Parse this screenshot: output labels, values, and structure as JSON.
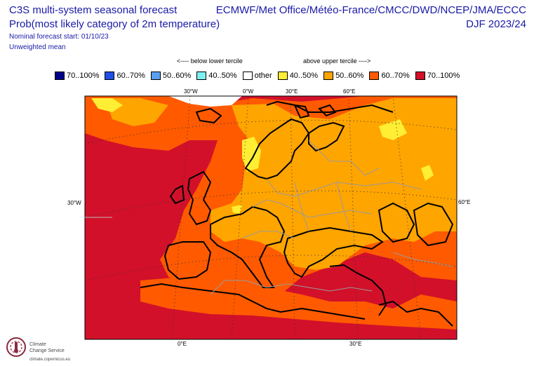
{
  "header": {
    "title_line1": "C3S multi-system seasonal forecast",
    "title_line2": "Prob(most likely category of 2m temperature)",
    "providers": "ECMWF/Met Office/Météo-France/CMCC/DWD/NCEP/JMA/ECCC",
    "season": "DJF 2023/24",
    "forecast_start": "Nominal forecast start: 01/10/23",
    "weighting": "Unweighted mean"
  },
  "legend": {
    "below_label": "<---- below lower tercile",
    "above_label": "above upper tercile ---->",
    "items": [
      {
        "label": "70..100%",
        "color": "#000088"
      },
      {
        "label": "60..70%",
        "color": "#1f4fe6"
      },
      {
        "label": "50..60%",
        "color": "#5aa0f0"
      },
      {
        "label": "40..50%",
        "color": "#7ff0f0"
      },
      {
        "label": "other",
        "color": "#ffffff"
      },
      {
        "label": "40..50%",
        "color": "#ffee33"
      },
      {
        "label": "50..60%",
        "color": "#ffa500"
      },
      {
        "label": "60..70%",
        "color": "#ff5a00"
      },
      {
        "label": "70..100%",
        "color": "#d2102a"
      }
    ]
  },
  "axes": {
    "top_ticks": [
      "30°W",
      "0°W",
      "30°E",
      "60°E"
    ],
    "left_tick": "30°W",
    "right_tick": "60°E",
    "bottom_ticks": [
      "0°E",
      "30°E"
    ]
  },
  "logo": {
    "name_line1": "Climate",
    "name_line2": "Change Service",
    "url": "climate.copernicus.eu"
  }
}
